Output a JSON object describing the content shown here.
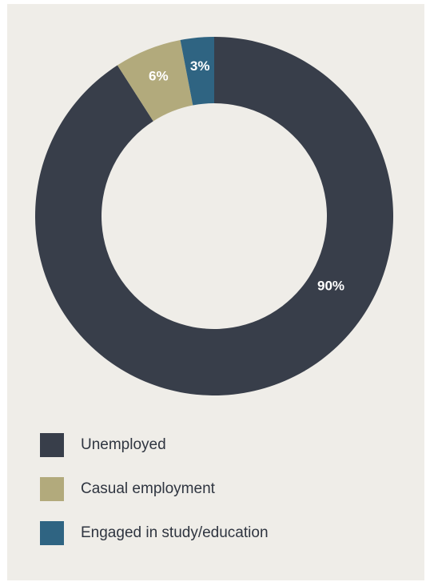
{
  "chart_data": {
    "type": "pie",
    "donut": true,
    "title": "",
    "categories": [
      "Unemployed",
      "Casual employment",
      "Engaged in study/education"
    ],
    "values": [
      90,
      6,
      3
    ],
    "labels": [
      "90%",
      "6%",
      "3%"
    ],
    "colors": [
      "#383e4a",
      "#b2aa7c",
      "#2f6482"
    ],
    "legend_position": "bottom"
  },
  "legend": {
    "items": [
      {
        "label": "Unemployed",
        "color": "#383e4a"
      },
      {
        "label": "Casual employment",
        "color": "#b2aa7c"
      },
      {
        "label": "Engaged in study/education",
        "color": "#2f6482"
      }
    ]
  },
  "colors": {
    "panel_background": "#efede8",
    "slice_label": "#ffffff"
  }
}
